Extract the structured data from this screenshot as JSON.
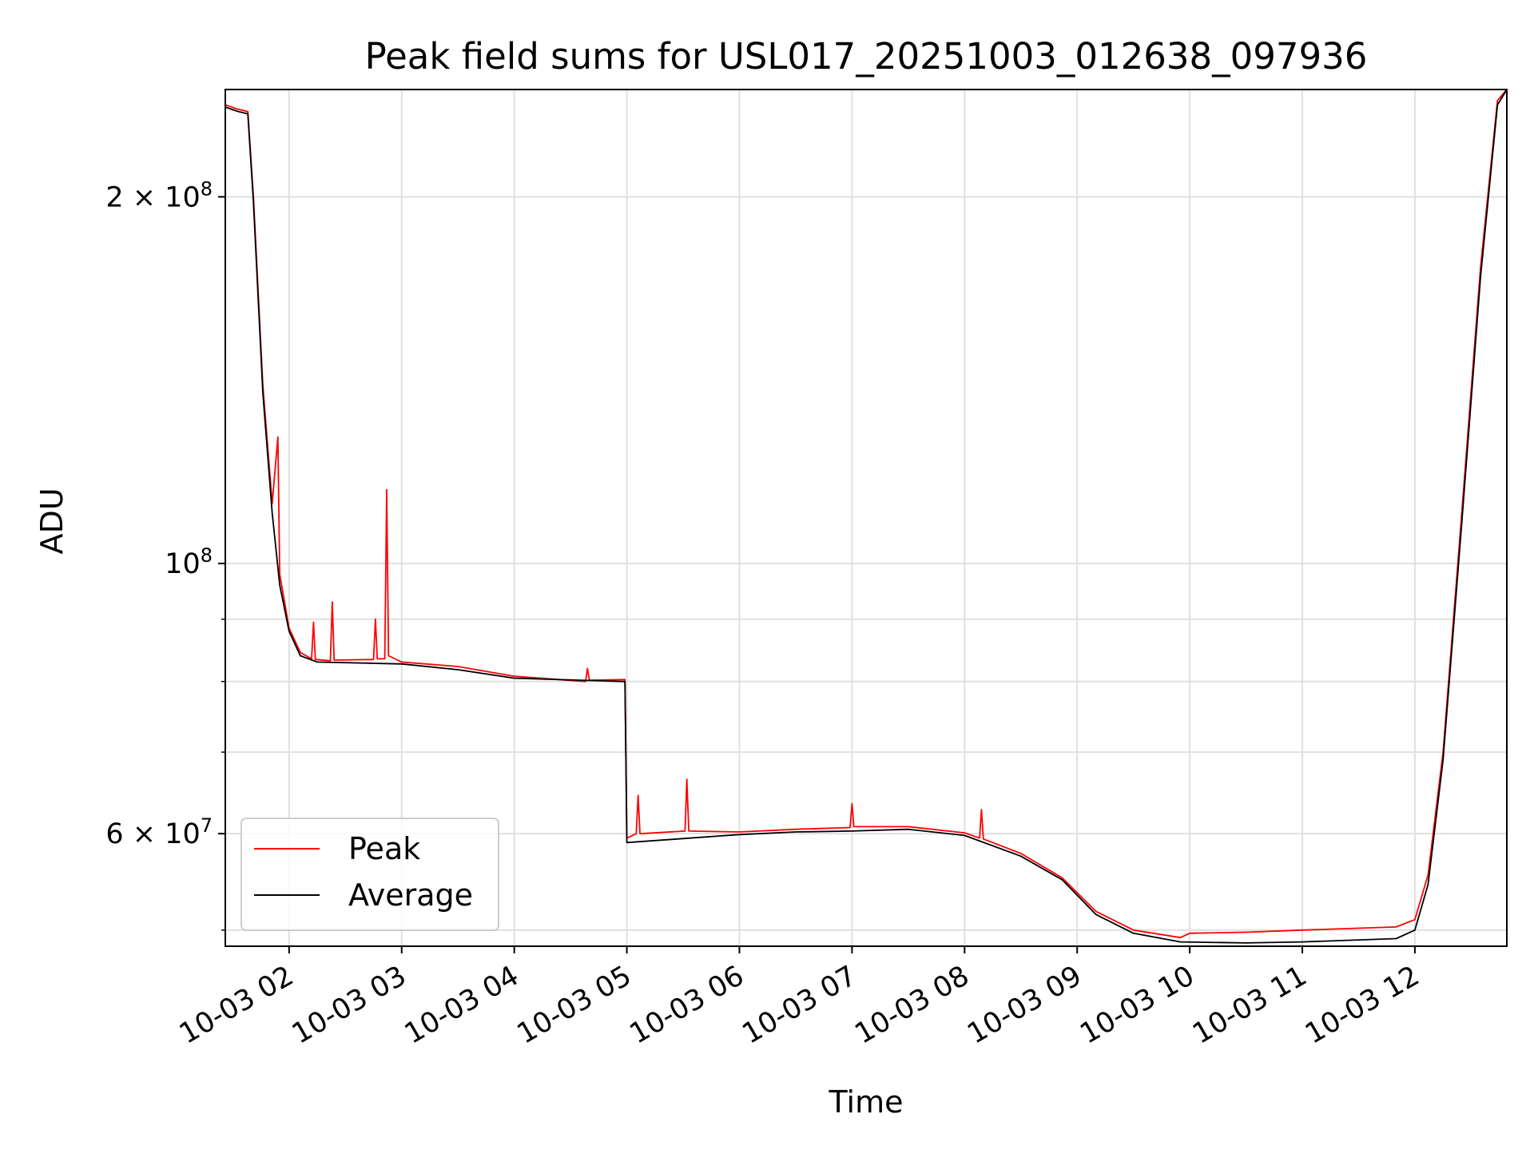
{
  "chart_data": {
    "type": "line",
    "title": "Peak field sums for USL017_20251003_012638_097936",
    "xlabel": "Time",
    "ylabel": "ADU",
    "yscale": "log",
    "grid": true,
    "legend_position": "lower-left",
    "xlim": [
      "2025-10-03 01:26",
      "2025-10-03 12:49"
    ],
    "ylim": [
      48500000,
      245000000
    ],
    "x_ticks": [
      "2025-10-03 02:00",
      "2025-10-03 03:00",
      "2025-10-03 04:00",
      "2025-10-03 05:00",
      "2025-10-03 06:00",
      "2025-10-03 07:00",
      "2025-10-03 08:00",
      "2025-10-03 09:00",
      "2025-10-03 10:00",
      "2025-10-03 11:00",
      "2025-10-03 12:00"
    ],
    "x_tick_labels": [
      "10-03 02",
      "10-03 03",
      "10-03 04",
      "10-03 05",
      "10-03 06",
      "10-03 07",
      "10-03 08",
      "10-03 09",
      "10-03 10",
      "10-03 11",
      "10-03 12"
    ],
    "y_ticks": [
      {
        "value": 200000000,
        "mantissa": "2",
        "exponent": "8"
      },
      {
        "value": 100000000,
        "mantissa": "",
        "exponent": "8"
      },
      {
        "value": 60000000,
        "mantissa": "6",
        "exponent": "7"
      }
    ],
    "y_minor_ticks": [
      50000000,
      70000000,
      80000000,
      90000000
    ],
    "series": [
      {
        "name": "Peak",
        "color": "#ff0000",
        "points": [
          [
            "2025-10-03 01:26",
            238000000
          ],
          [
            "2025-10-03 01:33",
            236000000
          ],
          [
            "2025-10-03 01:38",
            235000000
          ],
          [
            "2025-10-03 01:41",
            200000000
          ],
          [
            "2025-10-03 01:46",
            140000000
          ],
          [
            "2025-10-03 01:51",
            112000000
          ],
          [
            "2025-10-03 01:54",
            127000000
          ],
          [
            "2025-10-03 01:55",
            98000000
          ],
          [
            "2025-10-03 02:00",
            88500000
          ],
          [
            "2025-10-03 02:06",
            84500000
          ],
          [
            "2025-10-03 02:12",
            83500000
          ],
          [
            "2025-10-03 02:13",
            89500000
          ],
          [
            "2025-10-03 02:14",
            83400000
          ],
          [
            "2025-10-03 02:22",
            83200000
          ],
          [
            "2025-10-03 02:23",
            93000000
          ],
          [
            "2025-10-03 02:24",
            83300000
          ],
          [
            "2025-10-03 02:45",
            83400000
          ],
          [
            "2025-10-03 02:46",
            90000000
          ],
          [
            "2025-10-03 02:47",
            83500000
          ],
          [
            "2025-10-03 02:51",
            83500000
          ],
          [
            "2025-10-03 02:52",
            115000000
          ],
          [
            "2025-10-03 02:53",
            84000000
          ],
          [
            "2025-10-03 03:00",
            83000000
          ],
          [
            "2025-10-03 03:30",
            82300000
          ],
          [
            "2025-10-03 04:00",
            80800000
          ],
          [
            "2025-10-03 04:38",
            80000000
          ],
          [
            "2025-10-03 04:39",
            82000000
          ],
          [
            "2025-10-03 04:40",
            80200000
          ],
          [
            "2025-10-03 04:59",
            80300000
          ],
          [
            "2025-10-03 05:00",
            59500000
          ],
          [
            "2025-10-03 05:05",
            60000000
          ],
          [
            "2025-10-03 05:06",
            64500000
          ],
          [
            "2025-10-03 05:07",
            60000000
          ],
          [
            "2025-10-03 05:31",
            60300000
          ],
          [
            "2025-10-03 05:32",
            66500000
          ],
          [
            "2025-10-03 05:33",
            60300000
          ],
          [
            "2025-10-03 06:00",
            60200000
          ],
          [
            "2025-10-03 06:30",
            60500000
          ],
          [
            "2025-10-03 06:59",
            60700000
          ],
          [
            "2025-10-03 07:00",
            63500000
          ],
          [
            "2025-10-03 07:01",
            60800000
          ],
          [
            "2025-10-03 07:30",
            60800000
          ],
          [
            "2025-10-03 08:00",
            60100000
          ],
          [
            "2025-10-03 08:08",
            59500000
          ],
          [
            "2025-10-03 08:09",
            62800000
          ],
          [
            "2025-10-03 08:10",
            59400000
          ],
          [
            "2025-10-03 08:30",
            57800000
          ],
          [
            "2025-10-03 08:52",
            55200000
          ],
          [
            "2025-10-03 09:10",
            51800000
          ],
          [
            "2025-10-03 09:30",
            50000000
          ],
          [
            "2025-10-03 09:55",
            49300000
          ],
          [
            "2025-10-03 10:00",
            49700000
          ],
          [
            "2025-10-03 10:30",
            49800000
          ],
          [
            "2025-10-03 11:00",
            50000000
          ],
          [
            "2025-10-03 11:50",
            50300000
          ],
          [
            "2025-10-03 12:00",
            51000000
          ],
          [
            "2025-10-03 12:07",
            55500000
          ],
          [
            "2025-10-03 12:15",
            70000000
          ],
          [
            "2025-10-03 12:25",
            110000000
          ],
          [
            "2025-10-03 12:35",
            175000000
          ],
          [
            "2025-10-03 12:44",
            240000000
          ],
          [
            "2025-10-03 12:49",
            245000000
          ]
        ]
      },
      {
        "name": "Average",
        "color": "#000000",
        "points": [
          [
            "2025-10-03 01:26",
            237000000
          ],
          [
            "2025-10-03 01:33",
            235000000
          ],
          [
            "2025-10-03 01:38",
            234000000
          ],
          [
            "2025-10-03 01:41",
            198000000
          ],
          [
            "2025-10-03 01:46",
            138000000
          ],
          [
            "2025-10-03 01:51",
            110000000
          ],
          [
            "2025-10-03 01:55",
            96000000
          ],
          [
            "2025-10-03 02:00",
            88000000
          ],
          [
            "2025-10-03 02:06",
            84000000
          ],
          [
            "2025-10-03 02:15",
            83000000
          ],
          [
            "2025-10-03 03:00",
            82700000
          ],
          [
            "2025-10-03 03:30",
            81800000
          ],
          [
            "2025-10-03 04:00",
            80500000
          ],
          [
            "2025-10-03 04:59",
            80000000
          ],
          [
            "2025-10-03 05:00",
            59000000
          ],
          [
            "2025-10-03 06:00",
            59900000
          ],
          [
            "2025-10-03 06:30",
            60200000
          ],
          [
            "2025-10-03 07:00",
            60300000
          ],
          [
            "2025-10-03 07:30",
            60500000
          ],
          [
            "2025-10-03 08:00",
            59800000
          ],
          [
            "2025-10-03 08:30",
            57500000
          ],
          [
            "2025-10-03 08:52",
            55000000
          ],
          [
            "2025-10-03 09:10",
            51500000
          ],
          [
            "2025-10-03 09:30",
            49700000
          ],
          [
            "2025-10-03 09:55",
            48900000
          ],
          [
            "2025-10-03 10:30",
            48800000
          ],
          [
            "2025-10-03 11:00",
            48900000
          ],
          [
            "2025-10-03 11:50",
            49200000
          ],
          [
            "2025-10-03 12:00",
            50000000
          ],
          [
            "2025-10-03 12:07",
            54500000
          ],
          [
            "2025-10-03 12:15",
            69000000
          ],
          [
            "2025-10-03 12:25",
            108000000
          ],
          [
            "2025-10-03 12:35",
            172000000
          ],
          [
            "2025-10-03 12:44",
            238000000
          ],
          [
            "2025-10-03 12:49",
            245000000
          ]
        ]
      }
    ]
  }
}
